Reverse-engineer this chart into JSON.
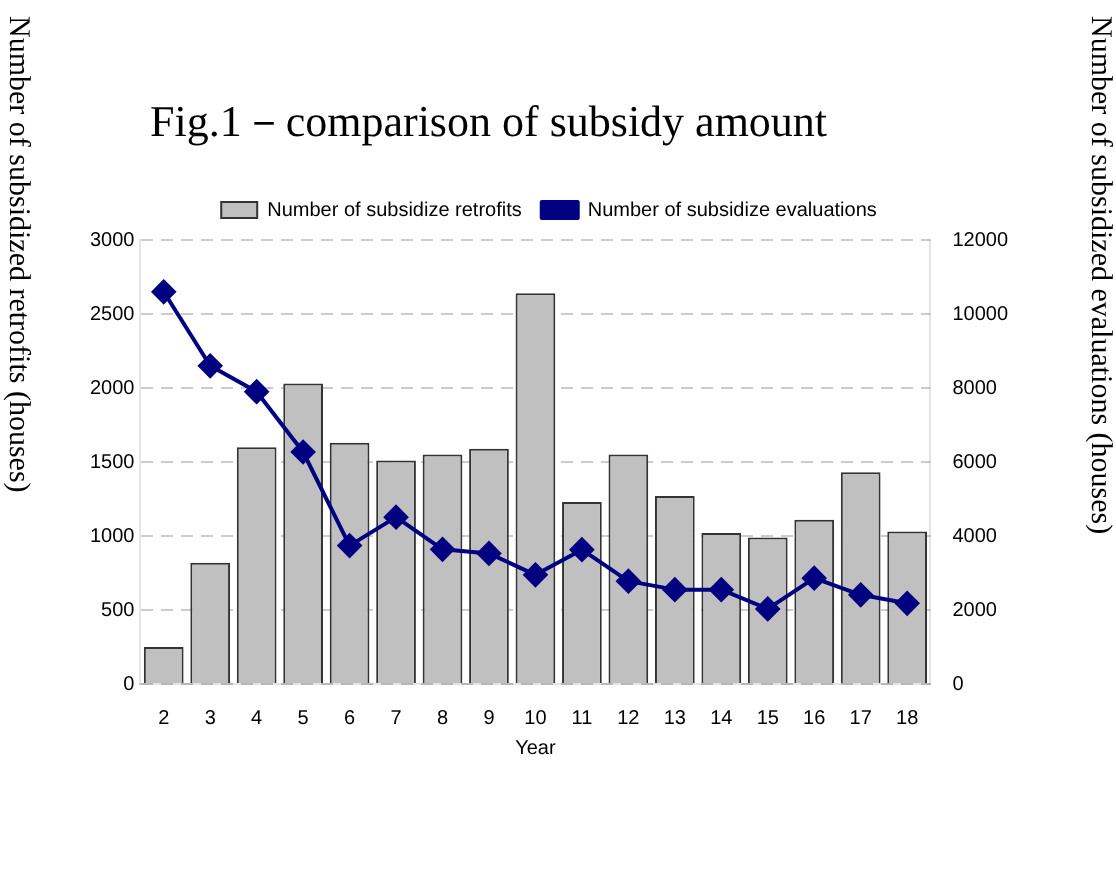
{
  "chart_data": {
    "type": "bar",
    "title": "Fig.1－comparison of subsidy amount",
    "xlabel": "Year",
    "ylabel": "Number of subsidized retrofits (houses)",
    "y2label": "Number of subsidized evaluations (houses)",
    "categories": [
      "2",
      "3",
      "4",
      "5",
      "6",
      "7",
      "8",
      "9",
      "10",
      "11",
      "12",
      "13",
      "14",
      "15",
      "16",
      "17",
      "18"
    ],
    "series": [
      {
        "name": "Number of subsidize retrofits",
        "color": "#c0c0c0",
        "values": [
          250,
          820,
          1600,
          2030,
          1630,
          1510,
          1550,
          1590,
          2640,
          1230,
          1550,
          1270,
          1020,
          990,
          1110,
          1430,
          1030
        ]
      },
      {
        "name": "Number of subsidize evaluations",
        "type": "line",
        "axis": "y2",
        "color": "#000080",
        "marker": "diamond",
        "values": [
          10600,
          8600,
          7900,
          6270,
          3740,
          4510,
          3640,
          3530,
          2950,
          3630,
          2780,
          2550,
          2550,
          2030,
          2860,
          2410,
          2180
        ]
      }
    ],
    "ylim": [
      0,
      3000
    ],
    "yticks": [
      0,
      500,
      1000,
      1500,
      2000,
      2500,
      3000
    ],
    "y2lim": [
      0,
      12000
    ],
    "y2ticks": [
      0,
      2000,
      4000,
      6000,
      8000,
      10000,
      12000
    ],
    "grid": "y",
    "legend": "top"
  }
}
